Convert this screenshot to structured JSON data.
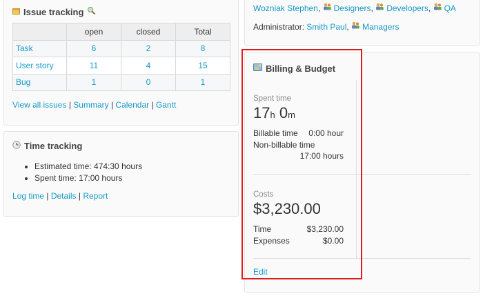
{
  "issue_tracking": {
    "title": "Issue tracking",
    "table": {
      "headers": [
        "",
        "open",
        "closed",
        "Total"
      ],
      "rows": [
        {
          "name": "Task",
          "open": "6",
          "closed": "2",
          "total": "8"
        },
        {
          "name": "User story",
          "open": "11",
          "closed": "4",
          "total": "15"
        },
        {
          "name": "Bug",
          "open": "1",
          "closed": "0",
          "total": "1"
        }
      ]
    },
    "links": {
      "view_all": "View all issues",
      "summary": "Summary",
      "calendar": "Calendar",
      "gantt": "Gantt"
    }
  },
  "time_tracking": {
    "title": "Time tracking",
    "estimated": "Estimated time: 474:30 hours",
    "spent": "Spent time: 17:00 hours",
    "links": {
      "log_time": "Log time",
      "details": "Details",
      "report": "Report"
    }
  },
  "members": {
    "person": "Wozniak Stephen",
    "groups": [
      "Designers",
      "Developers",
      "QA"
    ],
    "admin_label": "Administrator:",
    "admin_person": "Smith Paul",
    "admin_group": "Managers"
  },
  "billing": {
    "title": "Billing & Budget",
    "spent_label": "Spent time",
    "spent_hours": "17",
    "hours_unit": "h",
    "spent_minutes": "0",
    "minutes_unit": "m",
    "billable_label": "Billable time",
    "billable_value": "0:00 hour",
    "non_billable_label": "Non-billable time",
    "non_billable_value": "17:00 hours",
    "costs_label": "Costs",
    "costs_total": "$3,230.00",
    "time_label": "Time",
    "time_value": "$3,230.00",
    "expenses_label": "Expenses",
    "expenses_value": "$0.00",
    "edit": "Edit"
  },
  "colors": {
    "link": "#169ac8",
    "highlight": "#e01d1d"
  }
}
